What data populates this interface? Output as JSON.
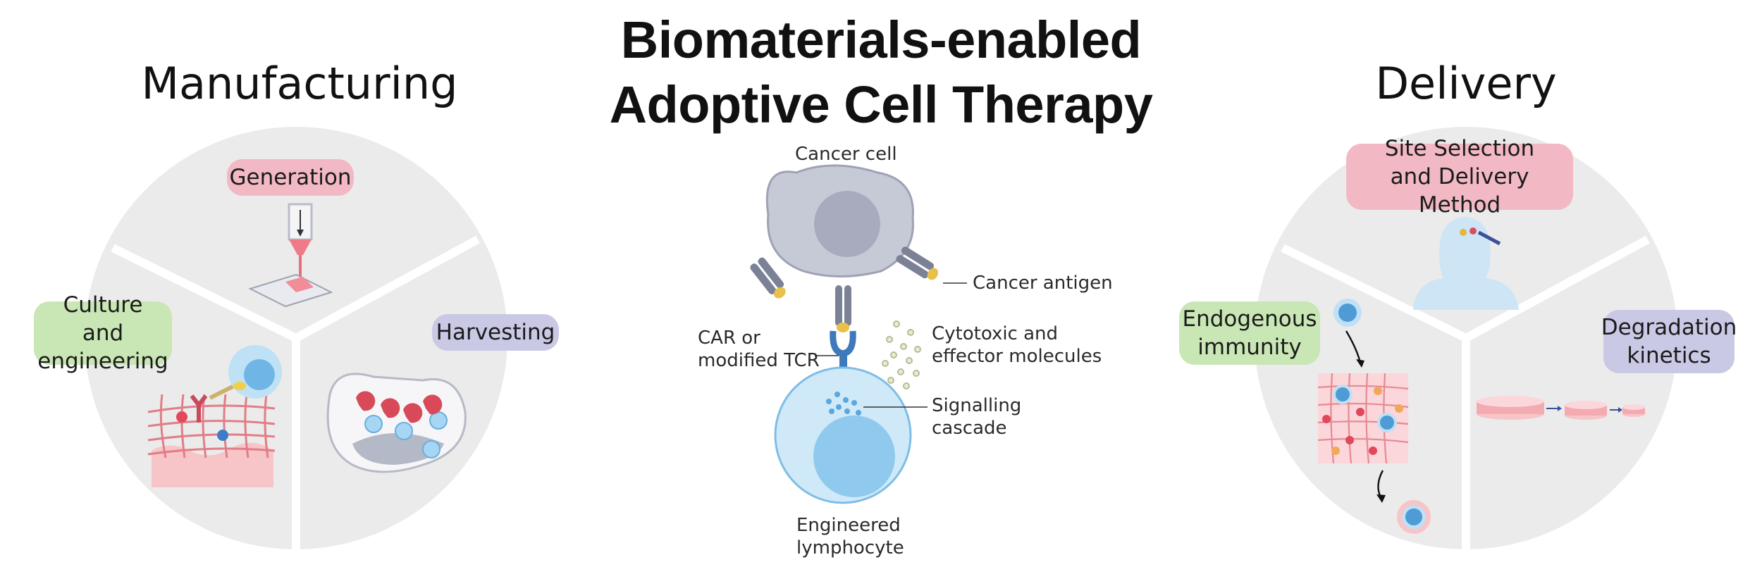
{
  "title": {
    "line1": "Biomaterials-enabled",
    "line2": "Adoptive Cell Therapy"
  },
  "manufacturing": {
    "heading": "Manufacturing",
    "generation": "Generation",
    "culture_line1": "Culture and",
    "culture_line2": "engineering",
    "harvesting": "Harvesting"
  },
  "center": {
    "cancer_cell": "Cancer cell",
    "cancer_antigen": "Cancer  antigen",
    "car_line1": "CAR or",
    "car_line2": "modified TCR",
    "cytotoxic_line1": "Cytotoxic and",
    "cytotoxic_line2": "effector molecules",
    "signalling_line1": "Signalling",
    "signalling_line2": "cascade",
    "engineered_line1": "Engineered",
    "engineered_line2": "lymphocyte"
  },
  "delivery": {
    "heading": "Delivery",
    "site_line1": "Site Selection",
    "site_line2": "and Delivery Method",
    "endogenous_line1": "Endogenous",
    "endogenous_line2": "immunity",
    "degradation_line1": "Degradation",
    "degradation_line2": "kinetics"
  },
  "colors": {
    "pink_pill": "#f2b9c4",
    "green_pill": "#c9e6b5",
    "purple_pill": "#c9c9e6",
    "pie_gray": "#ebebeb",
    "cell_blue": "#7fc1ea",
    "cancer_gray": "#b8bccb"
  }
}
